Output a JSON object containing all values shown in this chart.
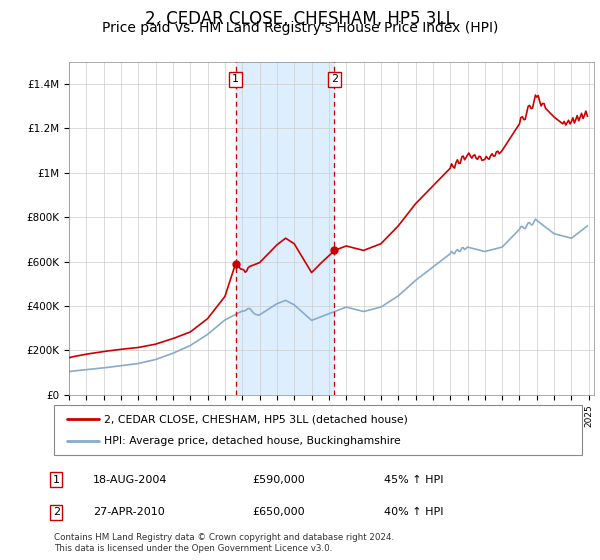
{
  "title": "2, CEDAR CLOSE, CHESHAM, HP5 3LL",
  "subtitle": "Price paid vs. HM Land Registry's House Price Index (HPI)",
  "title_fontsize": 12,
  "subtitle_fontsize": 10,
  "red_line_color": "#cc0000",
  "blue_line_color": "#88aacc",
  "shading_color": "#ddeeff",
  "sale1_year": 2004.62,
  "sale1_price": 590000,
  "sale1_label": "1",
  "sale1_date": "18-AUG-2004",
  "sale1_pct": "45%",
  "sale2_year": 2010.32,
  "sale2_price": 650000,
  "sale2_label": "2",
  "sale2_date": "27-APR-2010",
  "sale2_pct": "40%",
  "ylim": [
    0,
    1500000
  ],
  "yticks": [
    0,
    200000,
    400000,
    600000,
    800000,
    1000000,
    1200000,
    1400000
  ],
  "ytick_labels": [
    "£0",
    "£200K",
    "£400K",
    "£600K",
    "£800K",
    "£1M",
    "£1.2M",
    "£1.4M"
  ],
  "legend_label_red": "2, CEDAR CLOSE, CHESHAM, HP5 3LL (detached house)",
  "legend_label_blue": "HPI: Average price, detached house, Buckinghamshire",
  "footnote": "Contains HM Land Registry data © Crown copyright and database right 2024.\nThis data is licensed under the Open Government Licence v3.0.",
  "red_years": [
    1995.0,
    1995.08,
    1995.17,
    1995.25,
    1995.33,
    1995.42,
    1995.5,
    1995.58,
    1995.67,
    1995.75,
    1995.83,
    1995.92,
    1996.0,
    1996.08,
    1996.17,
    1996.25,
    1996.33,
    1996.42,
    1996.5,
    1996.58,
    1996.67,
    1996.75,
    1996.83,
    1996.92,
    1997.0,
    1997.08,
    1997.17,
    1997.25,
    1997.33,
    1997.42,
    1997.5,
    1997.58,
    1997.67,
    1997.75,
    1997.83,
    1997.92,
    1998.0,
    1998.08,
    1998.17,
    1998.25,
    1998.33,
    1998.42,
    1998.5,
    1998.58,
    1998.67,
    1998.75,
    1998.83,
    1998.92,
    1999.0,
    1999.08,
    1999.17,
    1999.25,
    1999.33,
    1999.42,
    1999.5,
    1999.58,
    1999.67,
    1999.75,
    1999.83,
    1999.92,
    2000.0,
    2000.08,
    2000.17,
    2000.25,
    2000.33,
    2000.42,
    2000.5,
    2000.58,
    2000.67,
    2000.75,
    2000.83,
    2000.92,
    2001.0,
    2001.08,
    2001.17,
    2001.25,
    2001.33,
    2001.42,
    2001.5,
    2001.58,
    2001.67,
    2001.75,
    2001.83,
    2001.92,
    2002.0,
    2002.08,
    2002.17,
    2002.25,
    2002.33,
    2002.42,
    2002.5,
    2002.58,
    2002.67,
    2002.75,
    2002.83,
    2002.92,
    2003.0,
    2003.08,
    2003.17,
    2003.25,
    2003.33,
    2003.42,
    2003.5,
    2003.58,
    2003.67,
    2003.75,
    2003.83,
    2003.92,
    2004.0,
    2004.08,
    2004.17,
    2004.25,
    2004.33,
    2004.42,
    2004.5,
    2004.62,
    2004.67,
    2004.75,
    2004.83,
    2004.92,
    2005.0,
    2005.08,
    2005.17,
    2005.25,
    2005.33,
    2005.42,
    2005.5,
    2005.58,
    2005.67,
    2005.75,
    2005.83,
    2005.92,
    2006.0,
    2006.08,
    2006.17,
    2006.25,
    2006.33,
    2006.42,
    2006.5,
    2006.58,
    2006.67,
    2006.75,
    2006.83,
    2006.92,
    2007.0,
    2007.08,
    2007.17,
    2007.25,
    2007.33,
    2007.42,
    2007.5,
    2007.58,
    2007.67,
    2007.75,
    2007.83,
    2007.92,
    2008.0,
    2008.08,
    2008.17,
    2008.25,
    2008.33,
    2008.42,
    2008.5,
    2008.58,
    2008.67,
    2008.75,
    2008.83,
    2008.92,
    2009.0,
    2009.08,
    2009.17,
    2009.25,
    2009.33,
    2009.42,
    2009.5,
    2009.58,
    2009.67,
    2009.75,
    2009.83,
    2009.92,
    2010.0,
    2010.08,
    2010.17,
    2010.25,
    2010.32,
    2010.42,
    2010.5,
    2010.58,
    2010.67,
    2010.75,
    2010.83,
    2010.92,
    2011.0,
    2011.08,
    2011.17,
    2011.25,
    2011.33,
    2011.42,
    2011.5,
    2011.58,
    2011.67,
    2011.75,
    2011.83,
    2011.92,
    2012.0,
    2012.08,
    2012.17,
    2012.25,
    2012.33,
    2012.42,
    2012.5,
    2012.58,
    2012.67,
    2012.75,
    2012.83,
    2012.92,
    2013.0,
    2013.08,
    2013.17,
    2013.25,
    2013.33,
    2013.42,
    2013.5,
    2013.58,
    2013.67,
    2013.75,
    2013.83,
    2013.92,
    2014.0,
    2014.08,
    2014.17,
    2014.25,
    2014.33,
    2014.42,
    2014.5,
    2014.58,
    2014.67,
    2014.75,
    2014.83,
    2014.92,
    2015.0,
    2015.08,
    2015.17,
    2015.25,
    2015.33,
    2015.42,
    2015.5,
    2015.58,
    2015.67,
    2015.75,
    2015.83,
    2015.92,
    2016.0,
    2016.08,
    2016.17,
    2016.25,
    2016.33,
    2016.42,
    2016.5,
    2016.58,
    2016.67,
    2016.75,
    2016.83,
    2016.92,
    2017.0,
    2017.08,
    2017.17,
    2017.25,
    2017.33,
    2017.42,
    2017.5,
    2017.58,
    2017.67,
    2017.75,
    2017.83,
    2017.92,
    2018.0,
    2018.08,
    2018.17,
    2018.25,
    2018.33,
    2018.42,
    2018.5,
    2018.58,
    2018.67,
    2018.75,
    2018.83,
    2018.92,
    2019.0,
    2019.08,
    2019.17,
    2019.25,
    2019.33,
    2019.42,
    2019.5,
    2019.58,
    2019.67,
    2019.75,
    2019.83,
    2019.92,
    2020.0,
    2020.08,
    2020.17,
    2020.25,
    2020.33,
    2020.42,
    2020.5,
    2020.58,
    2020.67,
    2020.75,
    2020.83,
    2020.92,
    2021.0,
    2021.08,
    2021.17,
    2021.25,
    2021.33,
    2021.42,
    2021.5,
    2021.58,
    2021.67,
    2021.75,
    2021.83,
    2021.92,
    2022.0,
    2022.08,
    2022.17,
    2022.25,
    2022.33,
    2022.42,
    2022.5,
    2022.58,
    2022.67,
    2022.75,
    2022.83,
    2022.92,
    2023.0,
    2023.08,
    2023.17,
    2023.25,
    2023.33,
    2023.42,
    2023.5,
    2023.58,
    2023.67,
    2023.75,
    2023.83,
    2023.92,
    2024.0,
    2024.08,
    2024.17,
    2024.25,
    2024.33,
    2024.42,
    2024.5,
    2024.58,
    2024.67,
    2024.75,
    2024.83,
    2024.92
  ],
  "blue_years": [
    1995.0,
    1995.08,
    1995.17,
    1995.25,
    1995.33,
    1995.42,
    1995.5,
    1995.58,
    1995.67,
    1995.75,
    1995.83,
    1995.92,
    1996.0,
    1996.08,
    1996.17,
    1996.25,
    1996.33,
    1996.42,
    1996.5,
    1996.58,
    1996.67,
    1996.75,
    1996.83,
    1996.92,
    1997.0,
    1997.08,
    1997.17,
    1997.25,
    1997.33,
    1997.42,
    1997.5,
    1997.58,
    1997.67,
    1997.75,
    1997.83,
    1997.92,
    1998.0,
    1998.08,
    1998.17,
    1998.25,
    1998.33,
    1998.42,
    1998.5,
    1998.58,
    1998.67,
    1998.75,
    1998.83,
    1998.92,
    1999.0,
    1999.08,
    1999.17,
    1999.25,
    1999.33,
    1999.42,
    1999.5,
    1999.58,
    1999.67,
    1999.75,
    1999.83,
    1999.92,
    2000.0,
    2000.08,
    2000.17,
    2000.25,
    2000.33,
    2000.42,
    2000.5,
    2000.58,
    2000.67,
    2000.75,
    2000.83,
    2000.92,
    2001.0,
    2001.08,
    2001.17,
    2001.25,
    2001.33,
    2001.42,
    2001.5,
    2001.58,
    2001.67,
    2001.75,
    2001.83,
    2001.92,
    2002.0,
    2002.08,
    2002.17,
    2002.25,
    2002.33,
    2002.42,
    2002.5,
    2002.58,
    2002.67,
    2002.75,
    2002.83,
    2002.92,
    2003.0,
    2003.08,
    2003.17,
    2003.25,
    2003.33,
    2003.42,
    2003.5,
    2003.58,
    2003.67,
    2003.75,
    2003.83,
    2003.92,
    2004.0,
    2004.08,
    2004.17,
    2004.25,
    2004.33,
    2004.42,
    2004.5,
    2004.62,
    2004.67,
    2004.75,
    2004.83,
    2004.92,
    2005.0,
    2005.08,
    2005.17,
    2005.25,
    2005.33,
    2005.42,
    2005.5,
    2005.58,
    2005.67,
    2005.75,
    2005.83,
    2005.92,
    2006.0,
    2006.08,
    2006.17,
    2006.25,
    2006.33,
    2006.42,
    2006.5,
    2006.58,
    2006.67,
    2006.75,
    2006.83,
    2006.92,
    2007.0,
    2007.08,
    2007.17,
    2007.25,
    2007.33,
    2007.42,
    2007.5,
    2007.58,
    2007.67,
    2007.75,
    2007.83,
    2007.92,
    2008.0,
    2008.08,
    2008.17,
    2008.25,
    2008.33,
    2008.42,
    2008.5,
    2008.58,
    2008.67,
    2008.75,
    2008.83,
    2008.92,
    2009.0,
    2009.08,
    2009.17,
    2009.25,
    2009.33,
    2009.42,
    2009.5,
    2009.58,
    2009.67,
    2009.75,
    2009.83,
    2009.92,
    2010.0,
    2010.08,
    2010.17,
    2010.25,
    2010.32,
    2010.42,
    2010.5,
    2010.58,
    2010.67,
    2010.75,
    2010.83,
    2010.92,
    2011.0,
    2011.08,
    2011.17,
    2011.25,
    2011.33,
    2011.42,
    2011.5,
    2011.58,
    2011.67,
    2011.75,
    2011.83,
    2011.92,
    2012.0,
    2012.08,
    2012.17,
    2012.25,
    2012.33,
    2012.42,
    2012.5,
    2012.58,
    2012.67,
    2012.75,
    2012.83,
    2012.92,
    2013.0,
    2013.08,
    2013.17,
    2013.25,
    2013.33,
    2013.42,
    2013.5,
    2013.58,
    2013.67,
    2013.75,
    2013.83,
    2013.92,
    2014.0,
    2014.08,
    2014.17,
    2014.25,
    2014.33,
    2014.42,
    2014.5,
    2014.58,
    2014.67,
    2014.75,
    2014.83,
    2014.92,
    2015.0,
    2015.08,
    2015.17,
    2015.25,
    2015.33,
    2015.42,
    2015.5,
    2015.58,
    2015.67,
    2015.75,
    2015.83,
    2015.92,
    2016.0,
    2016.08,
    2016.17,
    2016.25,
    2016.33,
    2016.42,
    2016.5,
    2016.58,
    2016.67,
    2016.75,
    2016.83,
    2016.92,
    2017.0,
    2017.08,
    2017.17,
    2017.25,
    2017.33,
    2017.42,
    2017.5,
    2017.58,
    2017.67,
    2017.75,
    2017.83,
    2017.92,
    2018.0,
    2018.08,
    2018.17,
    2018.25,
    2018.33,
    2018.42,
    2018.5,
    2018.58,
    2018.67,
    2018.75,
    2018.83,
    2018.92,
    2019.0,
    2019.08,
    2019.17,
    2019.25,
    2019.33,
    2019.42,
    2019.5,
    2019.58,
    2019.67,
    2019.75,
    2019.83,
    2019.92,
    2020.0,
    2020.08,
    2020.17,
    2020.25,
    2020.33,
    2020.42,
    2020.5,
    2020.58,
    2020.67,
    2020.75,
    2020.83,
    2020.92,
    2021.0,
    2021.08,
    2021.17,
    2021.25,
    2021.33,
    2021.42,
    2021.5,
    2021.58,
    2021.67,
    2021.75,
    2021.83,
    2021.92,
    2022.0,
    2022.08,
    2022.17,
    2022.25,
    2022.33,
    2022.42,
    2022.5,
    2022.58,
    2022.67,
    2022.75,
    2022.83,
    2022.92,
    2023.0,
    2023.08,
    2023.17,
    2023.25,
    2023.33,
    2023.42,
    2023.5,
    2023.58,
    2023.67,
    2023.75,
    2023.83,
    2023.92,
    2024.0,
    2024.08,
    2024.17,
    2024.25,
    2024.33,
    2024.42,
    2024.5,
    2024.58,
    2024.67,
    2024.75,
    2024.83,
    2024.92
  ]
}
